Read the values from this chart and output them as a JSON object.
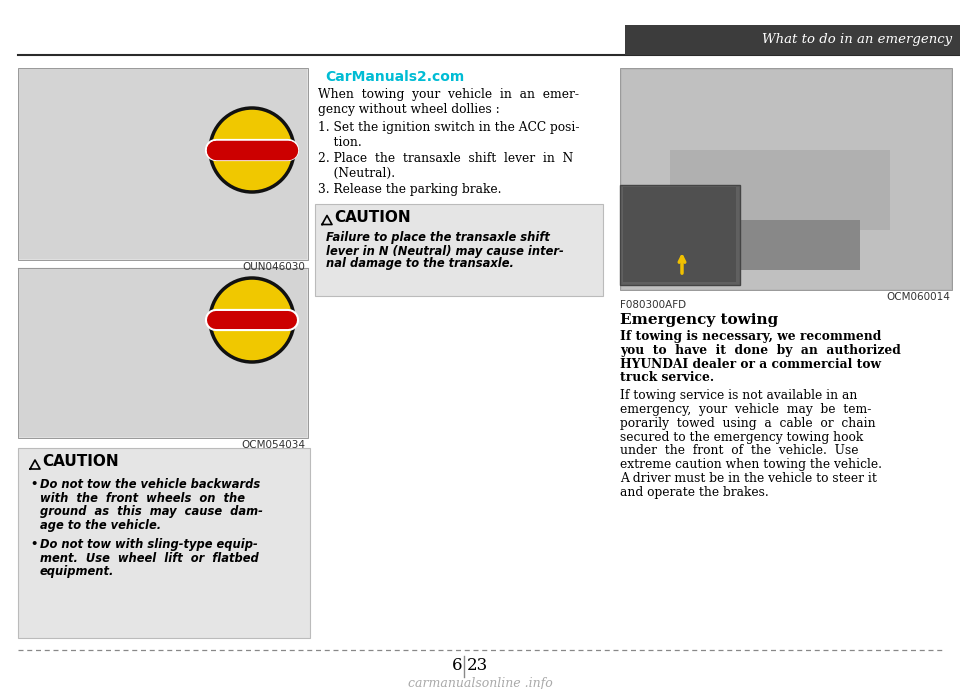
{
  "page_bg": "#ffffff",
  "header_text": "What to do in an emergency",
  "header_bar_color": "#3c3c3c",
  "header_text_color": "#ffffff",
  "watermark_text": "CarManuals2.com",
  "watermark_color": "#00bcd4",
  "body_text_color": "#1a1a1a",
  "caution_bg": "#e5e5e5",
  "img1_bg": "#d8d8d8",
  "img2_bg": "#d8d8d8",
  "img3_bg": "#c8c8c8",
  "no_entry_yellow": "#f0c800",
  "no_entry_red": "#cc0000",
  "intro_line1": "When  towing  your  vehicle  in  an  emer-",
  "intro_line2": "gency without wheel dollies :",
  "step1_line1": "1. Set the ignition switch in the ACC posi-",
  "step1_line2": "    tion.",
  "step2_line1": "2. Place  the  transaxle  shift  lever  in  N",
  "step2_line2": "    (Neutral).",
  "step3": "3. Release the parking brake.",
  "caution1_title": "CAUTION",
  "caution1_line1": "Failure to place the transaxle shift",
  "caution1_line2": "lever in N (Neutral) may cause inter-",
  "caution1_line3": "nal damage to the transaxle.",
  "img_label1": "OUN046030",
  "img_label2": "OCM054034",
  "img_label3": "OCM060014",
  "img_label4": "F080300AFD",
  "caution2_title": "CAUTION",
  "caution2_b1_l1": "Do not tow the vehicle backwards",
  "caution2_b1_l2": "with  the  front  wheels  on  the",
  "caution2_b1_l3": "ground  as  this  may  cause  dam-",
  "caution2_b1_l4": "age to the vehicle.",
  "caution2_b2_l1": "Do not tow with sling-type equip-",
  "caution2_b2_l2": "ment.  Use  wheel  lift  or  flatbed",
  "caution2_b2_l3": "equipment.",
  "emerg_title": "Emergency towing",
  "emerg_bold_l1": "If towing is necessary, we recommend",
  "emerg_bold_l2": "you  to  have  it  done  by  an  authorized",
  "emerg_bold_l3": "HYUNDAI dealer or a commercial tow",
  "emerg_bold_l4": "truck service.",
  "emerg_norm_l1": "If towing service is not available in an",
  "emerg_norm_l2": "emergency,  your  vehicle  may  be  tem-",
  "emerg_norm_l3": "porarily  towed  using  a  cable  or  chain",
  "emerg_norm_l4": "secured to the emergency towing hook",
  "emerg_norm_l5": "under  the  front  of  the  vehicle.  Use",
  "emerg_norm_l6": "extreme caution when towing the vehicle.",
  "emerg_norm_l7": "A driver must be in the vehicle to steer it",
  "emerg_norm_l8": "and operate the brakes.",
  "page_left": "6",
  "page_right": "23",
  "footer_logo": "carmanualsonline .info"
}
